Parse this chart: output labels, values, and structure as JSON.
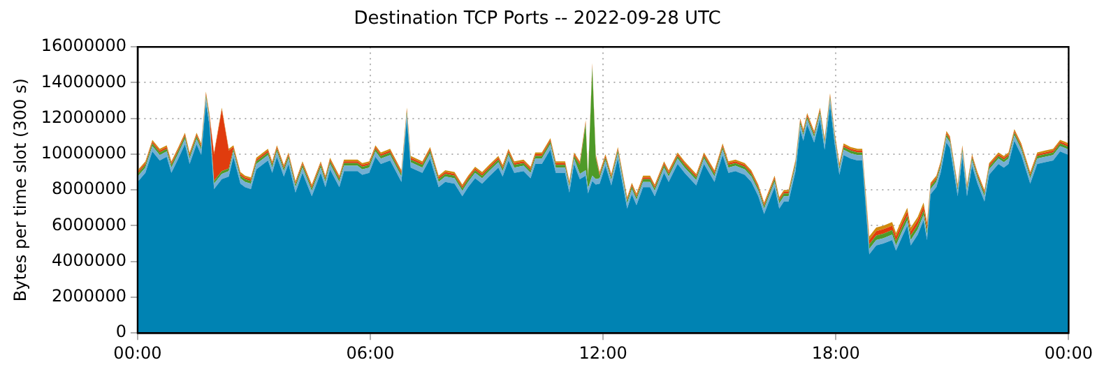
{
  "chart_data": {
    "type": "area",
    "title": "Destination TCP Ports -- 2022-09-28 UTC",
    "ylabel": "Bytes per time slot (300 s)",
    "stacked": true,
    "grid": true,
    "legend": false,
    "marker": "none",
    "x": [
      0,
      0.2,
      0.38,
      0.57,
      0.75,
      0.87,
      1.05,
      1.22,
      1.34,
      1.52,
      1.64,
      1.76,
      1.85,
      1.97,
      2.17,
      2.35,
      2.47,
      2.65,
      2.77,
      2.92,
      3.06,
      3.36,
      3.47,
      3.59,
      3.77,
      3.89,
      4.07,
      4.25,
      4.49,
      4.72,
      4.84,
      4.96,
      5.2,
      5.32,
      5.67,
      5.79,
      5.97,
      6.13,
      6.27,
      6.51,
      6.8,
      6.94,
      7.04,
      7.34,
      7.54,
      7.76,
      7.93,
      8.17,
      8.37,
      8.52,
      8.7,
      8.88,
      9.06,
      9.3,
      9.41,
      9.56,
      9.71,
      9.95,
      10.13,
      10.25,
      10.42,
      10.64,
      10.78,
      11.02,
      11.13,
      11.25,
      11.4,
      11.55,
      11.61,
      11.72,
      11.81,
      11.91,
      12.06,
      12.21,
      12.38,
      12.62,
      12.74,
      12.86,
      13.03,
      13.21,
      13.33,
      13.57,
      13.69,
      13.92,
      14.1,
      14.4,
      14.6,
      14.87,
      15.08,
      15.23,
      15.41,
      15.65,
      15.82,
      16,
      16.15,
      16.42,
      16.54,
      16.66,
      16.78,
      16.96,
      17.08,
      17.16,
      17.26,
      17.44,
      17.59,
      17.71,
      17.85,
      17.97,
      18.09,
      18.2,
      18.38,
      18.56,
      18.68,
      18.86,
      19.04,
      19.22,
      19.45,
      19.55,
      19.69,
      19.84,
      19.93,
      20.11,
      20.26,
      20.35,
      20.44,
      20.59,
      20.7,
      20.85,
      20.94,
      21.14,
      21.26,
      21.38,
      21.51,
      21.65,
      21.83,
      21.95,
      22.19,
      22.33,
      22.45,
      22.6,
      22.78,
      23.01,
      23.19,
      23.39,
      23.6,
      23.78,
      23.9,
      24
    ],
    "xlim": [
      0,
      24
    ],
    "xticks": [
      {
        "value": 0,
        "label": "00:00"
      },
      {
        "value": 6,
        "label": "06:00"
      },
      {
        "value": 12,
        "label": "12:00"
      },
      {
        "value": 18,
        "label": "18:00"
      },
      {
        "value": 24,
        "label": "00:00"
      }
    ],
    "ylim": [
      0,
      16000000
    ],
    "yticks": [
      0,
      2000000,
      4000000,
      6000000,
      8000000,
      10000000,
      12000000,
      14000000,
      16000000
    ],
    "series": [
      {
        "color": "#0083b3",
        "values": [
          8450000,
          8950000,
          10150000,
          9650000,
          9850000,
          8950000,
          9750000,
          10550000,
          9450000,
          10550000,
          9950000,
          12850000,
          11650000,
          8050000,
          8600000,
          8750000,
          9850000,
          8350000,
          8150000,
          8050000,
          9150000,
          9650000,
          8950000,
          9850000,
          8750000,
          9450000,
          7850000,
          8950000,
          7650000,
          8950000,
          8150000,
          9150000,
          8150000,
          9050000,
          9050000,
          8850000,
          8950000,
          9850000,
          9450000,
          9650000,
          8450000,
          11950000,
          9250000,
          8950000,
          9750000,
          8150000,
          8450000,
          8350000,
          7650000,
          8150000,
          8650000,
          8350000,
          8750000,
          9250000,
          8750000,
          9650000,
          8950000,
          9050000,
          8650000,
          9450000,
          9450000,
          10250000,
          8950000,
          8950000,
          7850000,
          9450000,
          8600000,
          8800000,
          7800000,
          8500000,
          8300000,
          8350000,
          9350000,
          8250000,
          9750000,
          6950000,
          7750000,
          7150000,
          8150000,
          8150000,
          7650000,
          8950000,
          8450000,
          9450000,
          8950000,
          8250000,
          9450000,
          8450000,
          9950000,
          8950000,
          9050000,
          8850000,
          8450000,
          7650000,
          6650000,
          8150000,
          6950000,
          7350000,
          7350000,
          9050000,
          11350000,
          10750000,
          11650000,
          10650000,
          11950000,
          10250000,
          12750000,
          10550000,
          8850000,
          9950000,
          9750000,
          9650000,
          9650000,
          4400000,
          4900000,
          5000000,
          5200000,
          4600000,
          5300000,
          6000000,
          4900000,
          5500000,
          6300000,
          5200000,
          7750000,
          8150000,
          8950000,
          10650000,
          10350000,
          7650000,
          9850000,
          7650000,
          9350000,
          8350000,
          7350000,
          8850000,
          9450000,
          9250000,
          9450000,
          10750000,
          9950000,
          8350000,
          9450000,
          9550000,
          9650000,
          10150000,
          10050000,
          9950000
        ]
      },
      {
        "color": "#74afd3",
        "values": [
          300000,
          300000,
          300000,
          300000,
          300000,
          300000,
          300000,
          300000,
          300000,
          300000,
          300000,
          300000,
          300000,
          300000,
          300000,
          300000,
          300000,
          300000,
          300000,
          300000,
          300000,
          300000,
          300000,
          300000,
          300000,
          300000,
          300000,
          300000,
          300000,
          300000,
          300000,
          300000,
          300000,
          300000,
          300000,
          300000,
          300000,
          300000,
          300000,
          300000,
          300000,
          300000,
          300000,
          300000,
          300000,
          300000,
          300000,
          300000,
          300000,
          300000,
          300000,
          300000,
          300000,
          300000,
          300000,
          300000,
          300000,
          300000,
          300000,
          300000,
          300000,
          300000,
          300000,
          300000,
          300000,
          300000,
          300000,
          300000,
          300000,
          300000,
          300000,
          300000,
          300000,
          300000,
          300000,
          300000,
          300000,
          300000,
          300000,
          300000,
          300000,
          300000,
          300000,
          300000,
          300000,
          300000,
          300000,
          300000,
          300000,
          300000,
          300000,
          300000,
          300000,
          300000,
          300000,
          300000,
          300000,
          300000,
          300000,
          300000,
          300000,
          300000,
          300000,
          300000,
          300000,
          300000,
          300000,
          300000,
          300000,
          300000,
          300000,
          300000,
          300000,
          300000,
          300000,
          300000,
          300000,
          300000,
          300000,
          300000,
          300000,
          300000,
          300000,
          300000,
          300000,
          300000,
          300000,
          300000,
          300000,
          300000,
          300000,
          300000,
          300000,
          300000,
          300000,
          300000,
          300000,
          300000,
          300000,
          300000,
          300000,
          300000,
          300000,
          300000,
          300000,
          300000,
          300000,
          300000
        ]
      },
      {
        "color": "#4e9a28",
        "values": [
          150000,
          150000,
          150000,
          150000,
          150000,
          150000,
          150000,
          150000,
          150000,
          150000,
          150000,
          150000,
          150000,
          150000,
          150000,
          150000,
          150000,
          150000,
          150000,
          150000,
          150000,
          150000,
          150000,
          150000,
          150000,
          150000,
          150000,
          150000,
          150000,
          150000,
          150000,
          150000,
          150000,
          150000,
          150000,
          150000,
          150000,
          150000,
          150000,
          150000,
          150000,
          150000,
          150000,
          150000,
          150000,
          150000,
          150000,
          150000,
          150000,
          150000,
          150000,
          150000,
          150000,
          150000,
          150000,
          150000,
          150000,
          150000,
          150000,
          150000,
          150000,
          150000,
          150000,
          150000,
          150000,
          150000,
          500000,
          2600000,
          500000,
          6100000,
          1200000,
          150000,
          150000,
          150000,
          150000,
          150000,
          150000,
          150000,
          150000,
          150000,
          150000,
          150000,
          150000,
          150000,
          150000,
          150000,
          150000,
          150000,
          150000,
          150000,
          150000,
          150000,
          150000,
          150000,
          150000,
          150000,
          150000,
          150000,
          150000,
          150000,
          150000,
          150000,
          150000,
          150000,
          150000,
          150000,
          150000,
          150000,
          150000,
          150000,
          150000,
          150000,
          150000,
          250000,
          250000,
          250000,
          250000,
          250000,
          250000,
          250000,
          250000,
          250000,
          250000,
          250000,
          150000,
          150000,
          150000,
          150000,
          150000,
          150000,
          150000,
          150000,
          150000,
          150000,
          150000,
          150000,
          150000,
          150000,
          150000,
          150000,
          150000,
          150000,
          150000,
          150000,
          150000,
          150000,
          150000,
          150000
        ]
      },
      {
        "color": "#e03c0e",
        "values": [
          100000,
          100000,
          100000,
          100000,
          100000,
          100000,
          100000,
          100000,
          100000,
          100000,
          100000,
          100000,
          100000,
          1500000,
          3450000,
          1000000,
          100000,
          100000,
          100000,
          100000,
          100000,
          100000,
          100000,
          100000,
          100000,
          100000,
          100000,
          100000,
          100000,
          100000,
          100000,
          100000,
          100000,
          100000,
          100000,
          100000,
          100000,
          100000,
          100000,
          100000,
          100000,
          100000,
          100000,
          100000,
          100000,
          100000,
          100000,
          100000,
          100000,
          100000,
          100000,
          100000,
          100000,
          100000,
          100000,
          100000,
          100000,
          100000,
          100000,
          100000,
          100000,
          100000,
          100000,
          100000,
          100000,
          100000,
          100000,
          100000,
          100000,
          100000,
          100000,
          100000,
          100000,
          100000,
          100000,
          100000,
          100000,
          100000,
          100000,
          100000,
          100000,
          100000,
          100000,
          100000,
          100000,
          100000,
          100000,
          100000,
          100000,
          100000,
          100000,
          100000,
          100000,
          100000,
          100000,
          100000,
          100000,
          100000,
          100000,
          100000,
          100000,
          100000,
          100000,
          100000,
          100000,
          100000,
          100000,
          100000,
          100000,
          100000,
          100000,
          100000,
          100000,
          250000,
          250000,
          250000,
          250000,
          250000,
          250000,
          250000,
          250000,
          250000,
          250000,
          250000,
          100000,
          100000,
          100000,
          100000,
          100000,
          100000,
          100000,
          100000,
          100000,
          100000,
          100000,
          100000,
          100000,
          100000,
          100000,
          100000,
          100000,
          100000,
          100000,
          100000,
          100000,
          100000,
          100000,
          100000
        ]
      },
      {
        "color": "#d08a0e",
        "values": [
          100000,
          100000,
          100000,
          100000,
          100000,
          100000,
          100000,
          100000,
          100000,
          100000,
          100000,
          100000,
          100000,
          100000,
          100000,
          100000,
          100000,
          100000,
          100000,
          100000,
          100000,
          100000,
          100000,
          100000,
          100000,
          100000,
          100000,
          100000,
          100000,
          100000,
          100000,
          100000,
          100000,
          100000,
          100000,
          100000,
          100000,
          100000,
          100000,
          100000,
          100000,
          100000,
          100000,
          100000,
          100000,
          100000,
          100000,
          100000,
          100000,
          100000,
          100000,
          100000,
          100000,
          100000,
          100000,
          100000,
          100000,
          100000,
          100000,
          100000,
          100000,
          100000,
          100000,
          100000,
          100000,
          100000,
          100000,
          100000,
          100000,
          100000,
          100000,
          100000,
          100000,
          100000,
          100000,
          100000,
          100000,
          100000,
          100000,
          100000,
          100000,
          100000,
          100000,
          100000,
          100000,
          100000,
          100000,
          100000,
          100000,
          100000,
          100000,
          100000,
          100000,
          100000,
          100000,
          100000,
          100000,
          100000,
          100000,
          100000,
          100000,
          100000,
          100000,
          100000,
          100000,
          100000,
          100000,
          100000,
          100000,
          100000,
          100000,
          100000,
          100000,
          200000,
          200000,
          200000,
          200000,
          200000,
          200000,
          200000,
          200000,
          200000,
          200000,
          200000,
          100000,
          100000,
          100000,
          100000,
          100000,
          100000,
          100000,
          100000,
          100000,
          100000,
          100000,
          100000,
          100000,
          100000,
          100000,
          100000,
          100000,
          100000,
          100000,
          100000,
          100000,
          100000,
          100000,
          100000
        ]
      }
    ]
  }
}
